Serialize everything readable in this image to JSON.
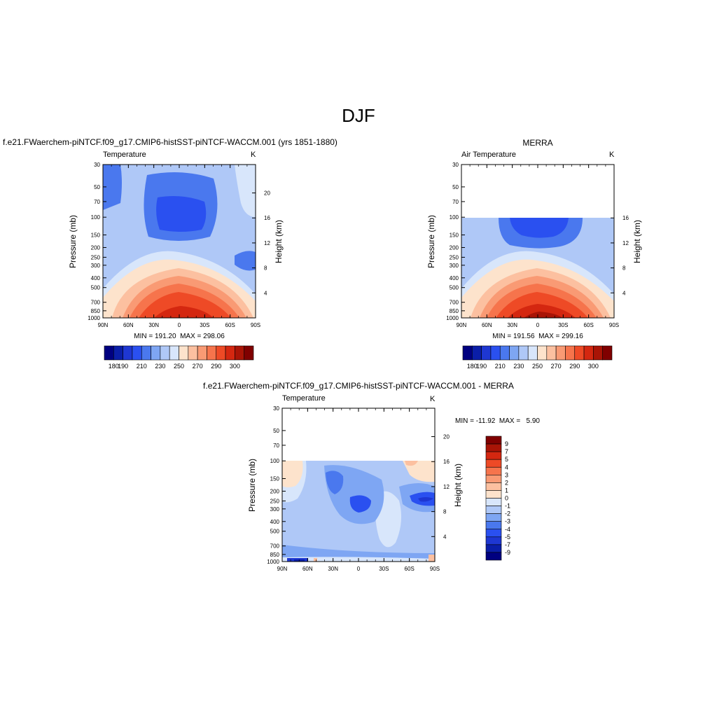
{
  "page_title": "DJF",
  "panels": [
    {
      "header": "f.e21.FWaerchem-piNTCF.f09_g17.CMIP6-histSST-piNTCF-WACCM.001 (yrs 1851-1880)",
      "left_label": "Temperature",
      "right_label": "K",
      "ylabel_left": "Pressure (mb)",
      "ylabel_right": "Height (km)",
      "minmax": "MIN = 191.20  MAX = 298.06"
    },
    {
      "header": "MERRA",
      "left_label": "Air Temperature",
      "right_label": "K",
      "ylabel_left": "Pressure (mb)",
      "ylabel_right": "Height (km)",
      "minmax": "MIN = 191.56  MAX = 299.16"
    },
    {
      "header": "f.e21.FWaerchem-piNTCF.f09_g17.CMIP6-histSST-piNTCF-WACCM.001 - MERRA",
      "left_label": "Temperature",
      "right_label": "K",
      "ylabel_left": "Pressure (mb)",
      "ylabel_right": "Height (km)",
      "minmax": "MIN = -11.92  MAX =   5.90"
    }
  ],
  "colors": {
    "temp_colorbar": [
      "#000080",
      "#0a1ea8",
      "#1e37d2",
      "#2a50f0",
      "#4a78ee",
      "#7ea6f3",
      "#afc8f7",
      "#d8e6fb",
      "#fde3cc",
      "#fcc0a0",
      "#f99a74",
      "#f6744c",
      "#ee4a26",
      "#d42710",
      "#a91406",
      "#800000"
    ],
    "diff_colorbar": [
      "#000080",
      "#0a1ea8",
      "#1e37d2",
      "#2a50f0",
      "#4a78ee",
      "#7ea6f3",
      "#afc8f7",
      "#d8e6fb",
      "#fde3cc",
      "#fcc0a0",
      "#f99a74",
      "#f6744c",
      "#ee4a26",
      "#d42710",
      "#a91406",
      "#800000"
    ]
  },
  "chart_data": [
    {
      "type": "heatmap",
      "title": "Temperature",
      "units": "K",
      "x_ticklabels": [
        "90N",
        "60N",
        "30N",
        "0",
        "30S",
        "60S",
        "90S"
      ],
      "y_ticklabels": [
        "30",
        "50",
        "70",
        "100",
        "150",
        "200",
        "250",
        "300",
        "400",
        "500",
        "700",
        "850",
        "1000"
      ],
      "y_ticklabels_right": [
        "20",
        "16",
        "12",
        "8",
        "4"
      ],
      "xlabel": "",
      "ylabel": "Pressure (mb)",
      "ylabel_right": "Height (km)",
      "min": 191.2,
      "max": 298.06,
      "contour_levels": [
        180,
        185,
        190,
        195,
        200,
        205,
        210,
        220,
        230,
        240,
        250,
        260,
        270,
        280,
        290,
        300
      ],
      "colorbar_labels": [
        "180",
        "190",
        "210",
        "230",
        "250",
        "270",
        "290",
        "300"
      ],
      "pressure_range_mb": [
        1000,
        30
      ]
    },
    {
      "type": "heatmap",
      "title": "Air Temperature",
      "units": "K",
      "x_ticklabels": [
        "90N",
        "60N",
        "30N",
        "0",
        "30S",
        "60S",
        "90S"
      ],
      "y_ticklabels": [
        "30",
        "50",
        "70",
        "100",
        "150",
        "200",
        "250",
        "300",
        "400",
        "500",
        "700",
        "850",
        "1000"
      ],
      "y_ticklabels_right": [
        "16",
        "12",
        "8",
        "4"
      ],
      "xlabel": "",
      "ylabel": "Pressure (mb)",
      "ylabel_right": "Height (km)",
      "min": 191.56,
      "max": 299.16,
      "contour_levels": [
        180,
        185,
        190,
        195,
        200,
        205,
        210,
        220,
        230,
        240,
        250,
        260,
        270,
        280,
        290,
        300
      ],
      "colorbar_labels": [
        "180",
        "190",
        "210",
        "230",
        "250",
        "270",
        "290",
        "300"
      ],
      "data_top_mb": 100
    },
    {
      "type": "heatmap",
      "title": "Temperature",
      "units": "K",
      "x_ticklabels": [
        "90N",
        "60N",
        "30N",
        "0",
        "30S",
        "60S",
        "90S"
      ],
      "y_ticklabels": [
        "30",
        "50",
        "70",
        "100",
        "150",
        "200",
        "250",
        "300",
        "400",
        "500",
        "700",
        "850",
        "1000"
      ],
      "y_ticklabels_right": [
        "20",
        "16",
        "12",
        "8",
        "4"
      ],
      "xlabel": "",
      "ylabel": "Pressure (mb)",
      "ylabel_right": "Height (km)",
      "min": -11.92,
      "max": 5.9,
      "contour_levels": [
        -9,
        -7,
        -5,
        -4,
        -3,
        -2,
        -1,
        0,
        1,
        2,
        3,
        4,
        5,
        7,
        9
      ],
      "colorbar_labels": [
        "9",
        "7",
        "5",
        "4",
        "3",
        "2",
        "1",
        "0",
        "-1",
        "-2",
        "-3",
        "-4",
        "-5",
        "-7",
        "-9"
      ],
      "data_top_mb": 100
    }
  ]
}
